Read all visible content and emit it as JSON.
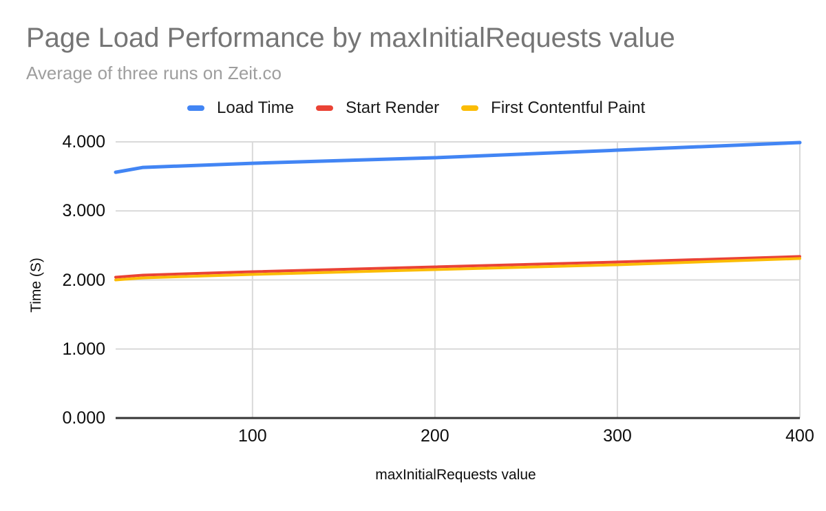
{
  "header": {
    "title": "Page Load Performance by maxInitialRequests value",
    "subtitle": "Average of three runs on Zeit.co"
  },
  "chart_data": {
    "type": "line",
    "title": "Page Load Performance by maxInitialRequests value",
    "subtitle": "Average of three runs on Zeit.co",
    "xlabel": "maxInitialRequests value",
    "ylabel": "Time (S)",
    "x": [
      25,
      40,
      100,
      200,
      300,
      400
    ],
    "series": [
      {
        "name": "Load Time",
        "color": "#4285F4",
        "values": [
          3.56,
          3.63,
          3.69,
          3.77,
          3.88,
          3.99
        ]
      },
      {
        "name": "Start Render",
        "color": "#EA4335",
        "values": [
          2.04,
          2.07,
          2.12,
          2.19,
          2.26,
          2.34
        ]
      },
      {
        "name": "First Contentful Paint",
        "color": "#FBBC04",
        "values": [
          2.0,
          2.03,
          2.08,
          2.15,
          2.22,
          2.31
        ]
      }
    ],
    "x_ticks": [
      {
        "value": 100,
        "label": "100"
      },
      {
        "value": 200,
        "label": "200"
      },
      {
        "value": 300,
        "label": "300"
      },
      {
        "value": 400,
        "label": "400"
      }
    ],
    "y_ticks": [
      {
        "value": 0,
        "label": "0.000"
      },
      {
        "value": 1,
        "label": "1.000"
      },
      {
        "value": 2,
        "label": "2.000"
      },
      {
        "value": 3,
        "label": "3.000"
      },
      {
        "value": 4,
        "label": "4.000"
      }
    ],
    "xlim": [
      25,
      400
    ],
    "ylim": [
      0,
      4
    ],
    "grid": true,
    "legend_position": "top"
  },
  "colors": {
    "title": "#757575",
    "subtitle": "#9e9e9e",
    "gridline": "#d9d9d9",
    "baseline": "#333333",
    "tick_text": "#0d0d0d",
    "background": "#ffffff"
  }
}
